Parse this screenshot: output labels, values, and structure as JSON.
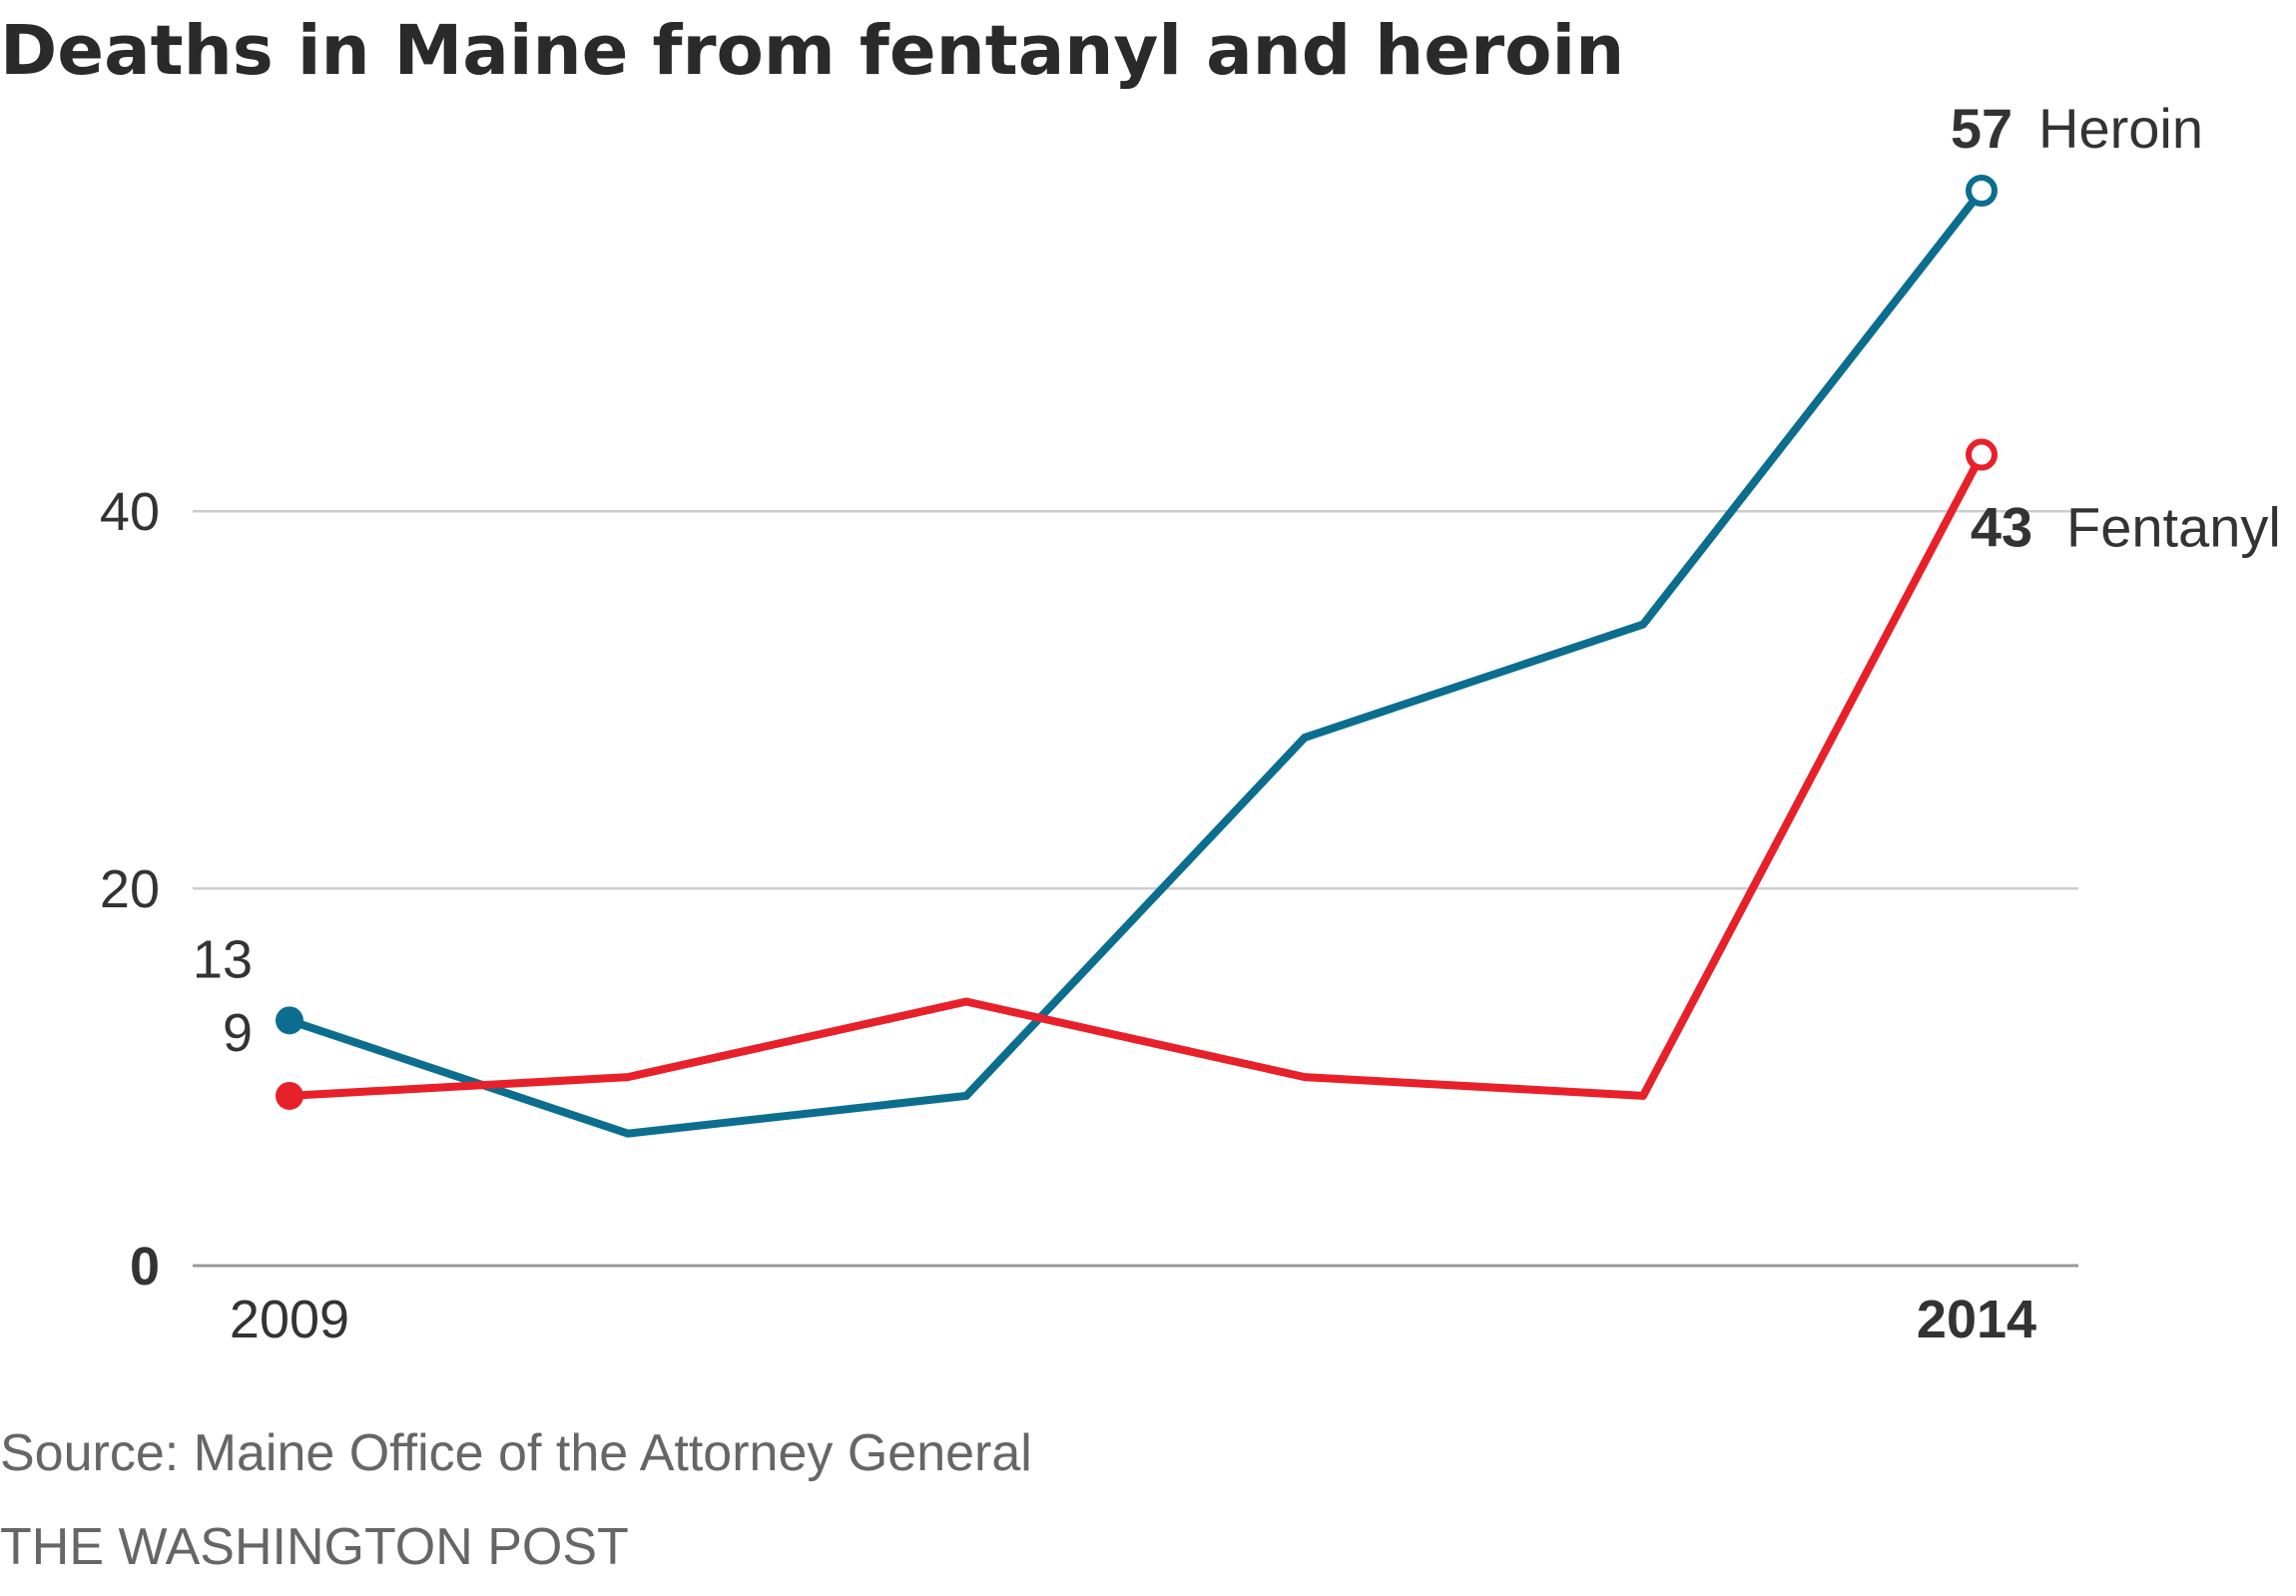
{
  "title": "Deaths in Maine from fentanyl and heroin",
  "source": "Source: Maine Office of the Attorney General",
  "credit": "THE WASHINGTON POST",
  "colors": {
    "heroin": "#0b6e8f",
    "fentanyl": "#e8202a",
    "grid": "#cccccc",
    "baseline": "#999999"
  },
  "chart_data": {
    "type": "line",
    "title": "Deaths in Maine from fentanyl and heroin",
    "xlabel": "",
    "ylabel": "",
    "x": [
      2009,
      2010,
      2011,
      2012,
      2013,
      2014
    ],
    "xlim": [
      2009,
      2014
    ],
    "ylim": [
      0,
      57
    ],
    "y_ticks": [
      0,
      20,
      40
    ],
    "x_tick_labels": [
      "2009",
      "2014"
    ],
    "grid": true,
    "legend": "inline-end-labels",
    "series": [
      {
        "name": "Heroin",
        "color": "#0b6e8f",
        "values": [
          13,
          7,
          9,
          28,
          34,
          57
        ],
        "start_label": "13",
        "end_value_label": "57",
        "end_name_label": "Heroin"
      },
      {
        "name": "Fentanyl",
        "color": "#e8202a",
        "values": [
          9,
          10,
          14,
          10,
          9,
          43
        ],
        "start_label": "9",
        "end_value_label": "43",
        "end_name_label": "Fentanyl"
      }
    ]
  }
}
